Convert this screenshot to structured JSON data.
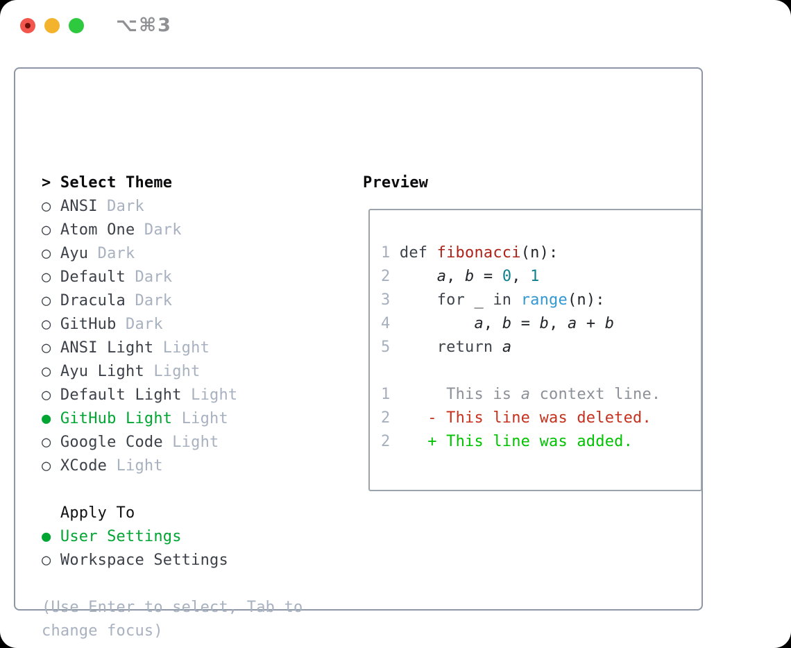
{
  "window": {
    "title": "⌥⌘3"
  },
  "colors": {
    "tl-red": "#f2564d",
    "tl-red-dot": "#70100a",
    "tl-yellow": "#f3b32c",
    "tl-green": "#2fc93f",
    "title-gray": "#8f9094",
    "panel-border": "#8c96a4",
    "box-border": "#9aa3ae",
    "prompt": "#0b0b0d",
    "heading": "#101113",
    "item": "#3c4149",
    "dim": "#a8b1bf",
    "sel": "#00a532",
    "hint": "#a8b1bf",
    "ln": "#a6afbd",
    "kw": "#3e444c",
    "fn": "#ae2318",
    "call": "#3398d2",
    "lit": "#10808d",
    "pl": "#21252a",
    "ctx": "#8c9199",
    "del": "#c5311c",
    "add": "#00c200"
  },
  "theme_menu": {
    "lines": [
      {
        "name": "select-theme-prompt",
        "interactable": false,
        "segs": [
          {
            "t": "> ",
            "s": "prompt",
            "n": "prompt-icon"
          },
          {
            "t": "Select Theme",
            "s": "menu-title"
          }
        ]
      },
      {
        "name": "theme-option-ansi-dark",
        "interactable": true,
        "segs": [
          {
            "t": "○ ",
            "s": "radio",
            "n": "radio-unselected-icon"
          },
          {
            "t": "ANSI ",
            "s": "item"
          },
          {
            "t": "Dark",
            "s": "dim"
          }
        ]
      },
      {
        "name": "theme-option-atom-one-dark",
        "interactable": true,
        "segs": [
          {
            "t": "○ ",
            "s": "radio",
            "n": "radio-unselected-icon"
          },
          {
            "t": "Atom One ",
            "s": "item"
          },
          {
            "t": "Dark",
            "s": "dim"
          }
        ]
      },
      {
        "name": "theme-option-ayu-dark",
        "interactable": true,
        "segs": [
          {
            "t": "○ ",
            "s": "radio",
            "n": "radio-unselected-icon"
          },
          {
            "t": "Ayu ",
            "s": "item"
          },
          {
            "t": "Dark",
            "s": "dim"
          }
        ]
      },
      {
        "name": "theme-option-default-dark",
        "interactable": true,
        "segs": [
          {
            "t": "○ ",
            "s": "radio",
            "n": "radio-unselected-icon"
          },
          {
            "t": "Default ",
            "s": "item"
          },
          {
            "t": "Dark",
            "s": "dim"
          }
        ]
      },
      {
        "name": "theme-option-dracula-dark",
        "interactable": true,
        "segs": [
          {
            "t": "○ ",
            "s": "radio",
            "n": "radio-unselected-icon"
          },
          {
            "t": "Dracula ",
            "s": "item"
          },
          {
            "t": "Dark",
            "s": "dim"
          }
        ]
      },
      {
        "name": "theme-option-github-dark",
        "interactable": true,
        "segs": [
          {
            "t": "○ ",
            "s": "radio",
            "n": "radio-unselected-icon"
          },
          {
            "t": "GitHub ",
            "s": "item"
          },
          {
            "t": "Dark",
            "s": "dim"
          }
        ]
      },
      {
        "name": "theme-option-ansi-light",
        "interactable": true,
        "segs": [
          {
            "t": "○ ",
            "s": "radio",
            "n": "radio-unselected-icon"
          },
          {
            "t": "ANSI Light ",
            "s": "item"
          },
          {
            "t": "Light",
            "s": "dim"
          }
        ]
      },
      {
        "name": "theme-option-ayu-light",
        "interactable": true,
        "segs": [
          {
            "t": "○ ",
            "s": "radio",
            "n": "radio-unselected-icon"
          },
          {
            "t": "Ayu Light ",
            "s": "item"
          },
          {
            "t": "Light",
            "s": "dim"
          }
        ]
      },
      {
        "name": "theme-option-default-light",
        "interactable": true,
        "segs": [
          {
            "t": "○ ",
            "s": "radio",
            "n": "radio-unselected-icon"
          },
          {
            "t": "Default Light ",
            "s": "item"
          },
          {
            "t": "Light",
            "s": "dim"
          }
        ]
      },
      {
        "name": "theme-option-github-light",
        "interactable": true,
        "segs": [
          {
            "t": "● ",
            "s": "radio-sel",
            "n": "radio-selected-icon"
          },
          {
            "t": "GitHub Light ",
            "s": "sel"
          },
          {
            "t": "Light",
            "s": "dim"
          }
        ]
      },
      {
        "name": "theme-option-google-code",
        "interactable": true,
        "segs": [
          {
            "t": "○ ",
            "s": "radio",
            "n": "radio-unselected-icon"
          },
          {
            "t": "Google Code ",
            "s": "item"
          },
          {
            "t": "Light",
            "s": "dim"
          }
        ]
      },
      {
        "name": "theme-option-xcode",
        "interactable": true,
        "segs": [
          {
            "t": "○ ",
            "s": "radio",
            "n": "radio-unselected-icon"
          },
          {
            "t": "XCode ",
            "s": "item"
          },
          {
            "t": "Light",
            "s": "dim"
          }
        ]
      },
      {
        "name": "spacer",
        "interactable": false,
        "segs": []
      },
      {
        "name": "apply-to-heading",
        "interactable": false,
        "segs": [
          {
            "t": "  Apply To",
            "s": "heading"
          }
        ]
      },
      {
        "name": "apply-option-user-settings",
        "interactable": true,
        "segs": [
          {
            "t": "● ",
            "s": "radio-sel",
            "n": "radio-selected-icon"
          },
          {
            "t": "User Settings",
            "s": "sel"
          }
        ]
      },
      {
        "name": "apply-option-workspace-settings",
        "interactable": true,
        "segs": [
          {
            "t": "○ ",
            "s": "radio",
            "n": "radio-unselected-icon"
          },
          {
            "t": "Workspace Settings",
            "s": "item"
          }
        ]
      },
      {
        "name": "spacer",
        "interactable": false,
        "segs": []
      },
      {
        "name": "hint-line-1",
        "interactable": false,
        "segs": [
          {
            "t": "(Use Enter to select, Tab to",
            "s": "hint"
          }
        ]
      },
      {
        "name": "hint-line-2",
        "interactable": false,
        "segs": [
          {
            "t": "change focus)",
            "s": "hint"
          }
        ]
      }
    ]
  },
  "preview": {
    "label": "Preview",
    "lines": [
      {
        "name": "code-line-1",
        "interactable": false,
        "segs": [
          {
            "t": "1 ",
            "s": "ln"
          },
          {
            "t": "def ",
            "s": "kw"
          },
          {
            "t": "fibonacci",
            "s": "fn"
          },
          {
            "t": "(n):",
            "s": "pl"
          }
        ]
      },
      {
        "name": "code-line-2",
        "interactable": false,
        "segs": [
          {
            "t": "2",
            "s": "ln"
          },
          {
            "t": "     ",
            "s": "pl"
          },
          {
            "t": "a",
            "s": "var"
          },
          {
            "t": ", ",
            "s": "pl"
          },
          {
            "t": "b",
            "s": "var"
          },
          {
            "t": " = ",
            "s": "pl"
          },
          {
            "t": "0",
            "s": "lit"
          },
          {
            "t": ", ",
            "s": "pl"
          },
          {
            "t": "1",
            "s": "lit"
          }
        ]
      },
      {
        "name": "code-line-3",
        "interactable": false,
        "segs": [
          {
            "t": "3",
            "s": "ln"
          },
          {
            "t": "     ",
            "s": "pl"
          },
          {
            "t": "for ",
            "s": "kw"
          },
          {
            "t": "_ ",
            "s": "pl"
          },
          {
            "t": "in ",
            "s": "kw"
          },
          {
            "t": "range",
            "s": "call"
          },
          {
            "t": "(n):",
            "s": "pl"
          }
        ]
      },
      {
        "name": "code-line-4",
        "interactable": false,
        "segs": [
          {
            "t": "4",
            "s": "ln"
          },
          {
            "t": "         ",
            "s": "pl"
          },
          {
            "t": "a",
            "s": "var"
          },
          {
            "t": ", ",
            "s": "pl"
          },
          {
            "t": "b",
            "s": "var"
          },
          {
            "t": " = ",
            "s": "pl"
          },
          {
            "t": "b",
            "s": "var"
          },
          {
            "t": ", ",
            "s": "pl"
          },
          {
            "t": "a",
            "s": "var"
          },
          {
            "t": " + ",
            "s": "pl"
          },
          {
            "t": "b",
            "s": "var"
          }
        ]
      },
      {
        "name": "code-line-5",
        "interactable": false,
        "segs": [
          {
            "t": "5",
            "s": "ln"
          },
          {
            "t": "     ",
            "s": "pl"
          },
          {
            "t": "return ",
            "s": "kw"
          },
          {
            "t": "a",
            "s": "var"
          }
        ]
      },
      {
        "name": "spacer",
        "interactable": false,
        "segs": []
      },
      {
        "name": "diff-context-line",
        "interactable": false,
        "segs": [
          {
            "t": "1",
            "s": "ln"
          },
          {
            "t": "      ",
            "s": "pl"
          },
          {
            "t": "This is ",
            "s": "ctx"
          },
          {
            "t": "a",
            "s": "ctx-var"
          },
          {
            "t": " context line.",
            "s": "ctx"
          }
        ]
      },
      {
        "name": "diff-deleted-line",
        "interactable": false,
        "segs": [
          {
            "t": "2",
            "s": "ln"
          },
          {
            "t": "    ",
            "s": "pl"
          },
          {
            "t": "- This line was deleted.",
            "s": "del"
          }
        ]
      },
      {
        "name": "diff-added-line",
        "interactable": false,
        "segs": [
          {
            "t": "2",
            "s": "ln"
          },
          {
            "t": "    ",
            "s": "pl"
          },
          {
            "t": "+ This line was added.",
            "s": "add"
          }
        ]
      }
    ]
  }
}
